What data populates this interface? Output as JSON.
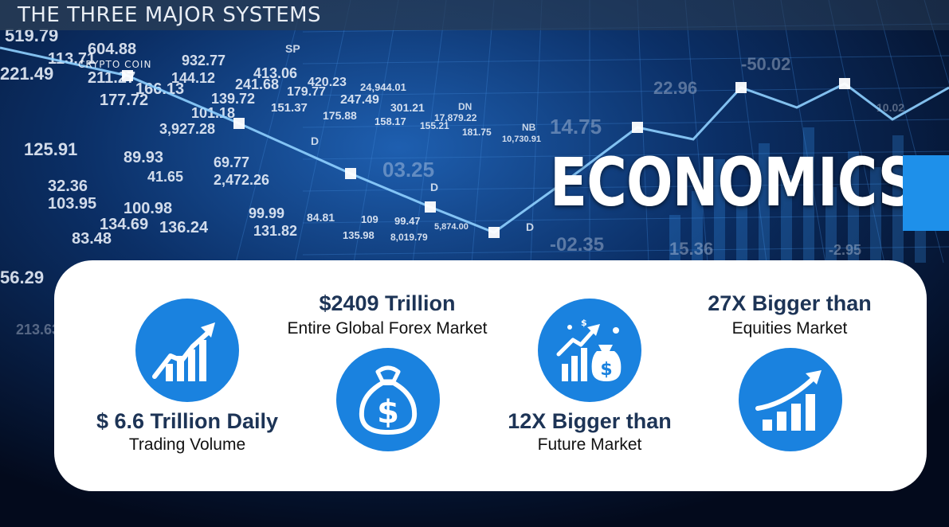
{
  "slide": {
    "title": "THE THREE MAJOR SYSTEMS",
    "watermark": "CRYPTO COIN",
    "headline": "ECONOMICS"
  },
  "background_numbers": [
    "519.79",
    "604.88",
    "113.71",
    "221.49",
    "211.27",
    "166.13",
    "177.72",
    "932.77",
    "413.06",
    "420.23",
    "24,944.01",
    "144.12",
    "241.68",
    "179.77",
    "247.49",
    "301.21",
    "17,879.22",
    "139.72",
    "151.37",
    "175.88",
    "158.17",
    "155.21",
    "181.75",
    "10,730.91",
    "101.18",
    "3,927.28",
    "125.91",
    "89.93",
    "69.77",
    "2,472.26",
    "41.65",
    "32.36",
    "103.95",
    "100.98",
    "99.99",
    "84.81",
    "109",
    "99.47",
    "5,874.00",
    "134.69",
    "136.24",
    "131.82",
    "135.98",
    "8,019.79",
    "83.48",
    "56.29",
    "213.63",
    "-50.02",
    "22.96",
    "14.75",
    "03.25",
    "-02.35",
    "15.36",
    "10.02",
    "-2.95"
  ],
  "background_labels": [
    "SP",
    "DN",
    "NB",
    "D",
    "D",
    "D"
  ],
  "stats": [
    {
      "id": "daily-volume",
      "main": "$ 6.6 Trillion Daily",
      "sub": "Trading Volume",
      "icon": "growth-chart-icon"
    },
    {
      "id": "global-forex",
      "main": "$2409 Trillion",
      "sub": "Entire Global Forex Market",
      "icon": "money-bag-icon"
    },
    {
      "id": "future-market",
      "main": "12X Bigger than",
      "sub": "Future Market",
      "icon": "finance-growth-icon"
    },
    {
      "id": "equities-market",
      "main": "27X Bigger than",
      "sub": "Equities Market",
      "icon": "rising-bars-icon"
    }
  ],
  "colors": {
    "accent": "#1e90ea",
    "icon_circle": "#1a82df",
    "stat_text": "#1d3456",
    "card": "#ffffff",
    "background": "#06142e"
  }
}
